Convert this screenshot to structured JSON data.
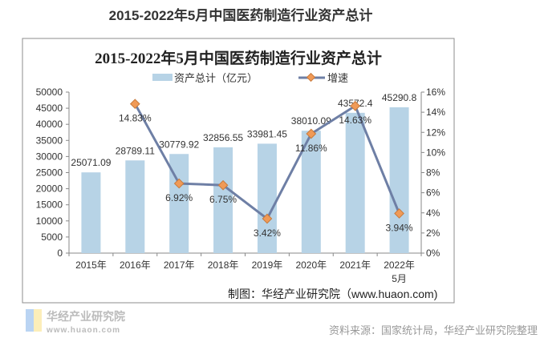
{
  "page_title": "2015-2022年5月中国医药制造行业资产总计",
  "source": "资料来源：国家统计局，华经产业研究院整理",
  "credit": "制图：华经产业研究院（www.huaon.com)",
  "watermark": {
    "name": "华经产业研究院",
    "url": "www.huaon.com"
  },
  "colors": {
    "bar": "#b7d3e6",
    "line": "#6e7fa5",
    "marker": "#f09a57"
  },
  "chart_data": {
    "type": "bar+line",
    "title": "2015-2022年5月中国医药制造行业资产总计",
    "categories": [
      "2015年",
      "2016年",
      "2017年",
      "2018年",
      "2019年",
      "2020年",
      "2021年",
      "2022年\n5月"
    ],
    "series": [
      {
        "name": "资产总计（亿元）",
        "type": "bar",
        "axis": "left",
        "values": [
          25071.09,
          28789.11,
          30779.92,
          32856.55,
          33981.45,
          38010.09,
          43572.4,
          45290.8
        ],
        "labels": [
          "25071.09",
          "28789.11",
          "30779.92",
          "32856.55",
          "33981.45",
          "38010.09",
          "43572.4",
          "45290.8"
        ]
      },
      {
        "name": "增速",
        "type": "line",
        "axis": "right",
        "values": [
          null,
          14.83,
          6.92,
          6.75,
          3.42,
          11.86,
          14.63,
          3.94
        ],
        "labels": [
          "",
          "14.83%",
          "6.92%",
          "6.75%",
          "3.42%",
          "11.86%",
          "14.63%",
          "3.94%"
        ]
      }
    ],
    "y_left": {
      "range": [
        0,
        50000
      ],
      "ticks": [
        "0",
        "5000",
        "10000",
        "15000",
        "20000",
        "25000",
        "30000",
        "35000",
        "40000",
        "45000",
        "50000"
      ]
    },
    "y_right": {
      "range": [
        0,
        16
      ],
      "ticks": [
        "0%",
        "2%",
        "4%",
        "6%",
        "8%",
        "10%",
        "12%",
        "14%",
        "16%"
      ]
    },
    "legend": "top",
    "grid": false
  }
}
